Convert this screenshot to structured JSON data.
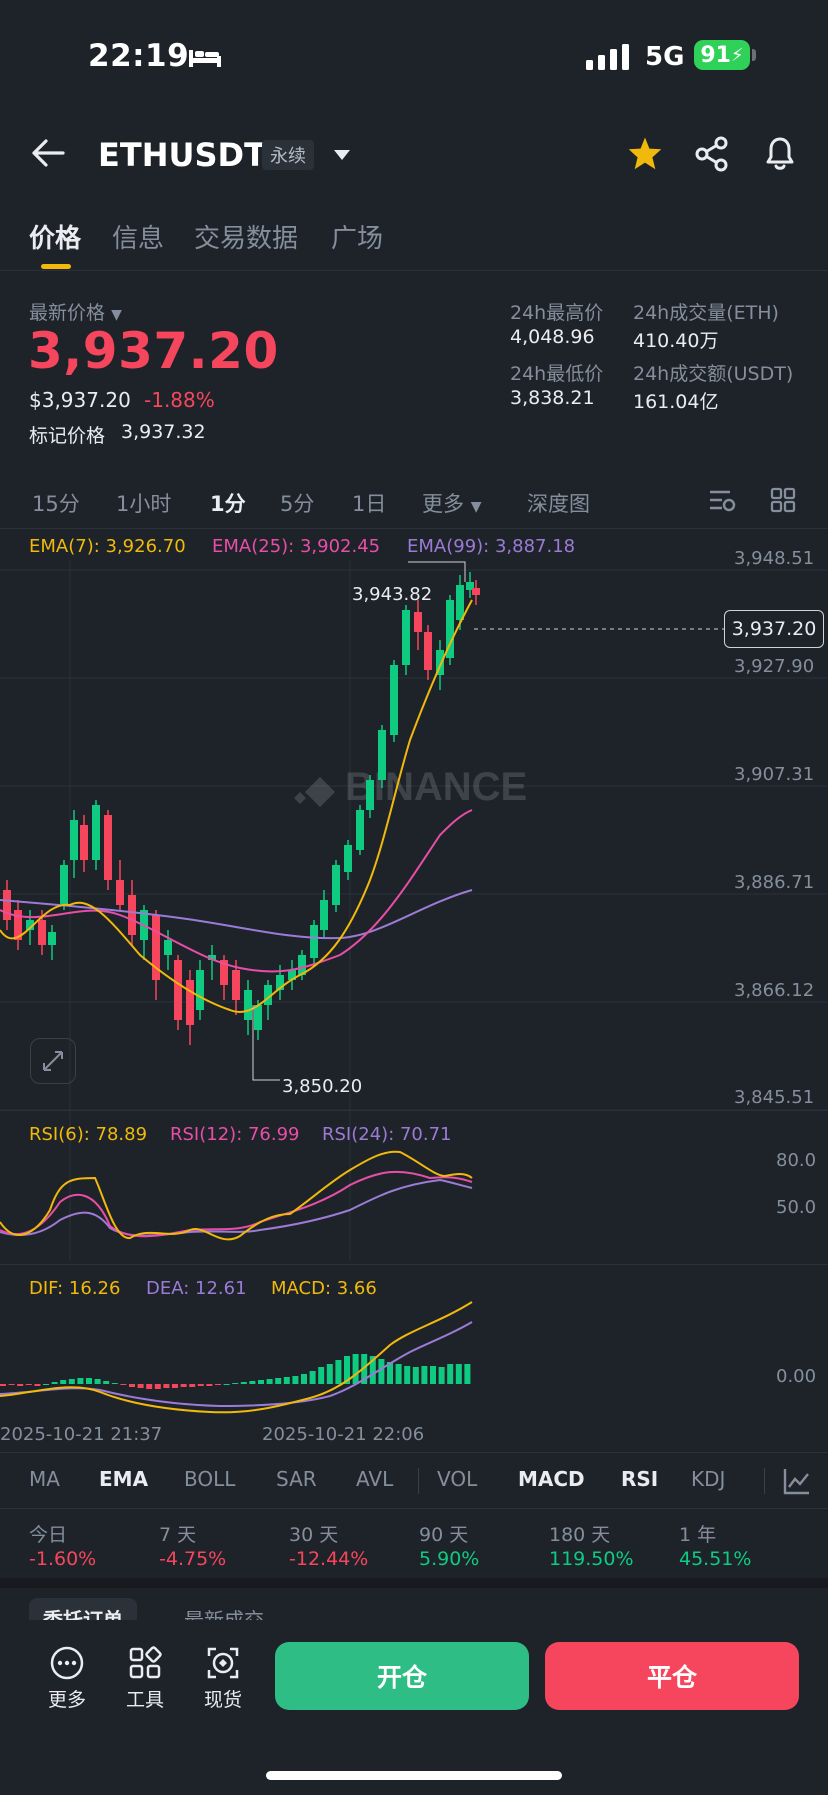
{
  "status": {
    "time": "22:19",
    "network": "5G",
    "battery": "91"
  },
  "header": {
    "symbol": "ETHUSDT",
    "tag": "永续"
  },
  "tabs": [
    "价格",
    "信息",
    "交易数据",
    "广场"
  ],
  "price": {
    "latest_label": "最新价格",
    "latest_value": "3,937.20",
    "usd_value": "$3,937.20",
    "change_pct": "-1.88%",
    "mark_label": "标记价格",
    "mark_value": "3,937.32"
  },
  "stats": {
    "high_label": "24h最高价",
    "high_value": "4,048.96",
    "vol_eth_label": "24h成交量(ETH)",
    "vol_eth_value": "410.40万",
    "low_label": "24h最低价",
    "low_value": "3,838.21",
    "vol_usdt_label": "24h成交额(USDT)",
    "vol_usdt_value": "161.04亿"
  },
  "timeframes": [
    "15分",
    "1小时",
    "1分",
    "5分",
    "1日",
    "更多",
    "深度图"
  ],
  "active_timeframe": "1分",
  "chart": {
    "ema7": "EMA(7): 3,926.70",
    "ema25": "EMA(25): 3,902.45",
    "ema99": "EMA(99): 3,887.18",
    "y_labels": [
      "3,948.51",
      "3,927.90",
      "3,907.31",
      "3,886.71",
      "3,866.12",
      "3,845.51"
    ],
    "current_price_tag": "3,937.20",
    "high_marker": "3,943.82",
    "low_marker": "3,850.20",
    "watermark": "BINANCE",
    "rsi6": "RSI(6): 78.89",
    "rsi12": "RSI(12): 76.99",
    "rsi24": "RSI(24): 70.71",
    "rsi_levels": [
      "80.0",
      "50.0"
    ],
    "dif": "DIF: 16.26",
    "dea": "DEA: 12.61",
    "macd": "MACD: 3.66",
    "macd_zero": "0.00",
    "x_labels": [
      "2025-10-21 21:37",
      "2025-10-21 22:06"
    ]
  },
  "indicator_tabs": [
    "MA",
    "EMA",
    "BOLL",
    "SAR",
    "AVL",
    "VOL",
    "MACD",
    "RSI",
    "KDJ"
  ],
  "performance": [
    {
      "label": "今日",
      "value": "-1.60%"
    },
    {
      "label": "7 天",
      "value": "-4.75%"
    },
    {
      "label": "30 天",
      "value": "-12.44%"
    },
    {
      "label": "90 天",
      "value": "5.90%"
    },
    {
      "label": "180 天",
      "value": "119.50%"
    },
    {
      "label": "1 年",
      "value": "45.51%"
    }
  ],
  "order_tabs": [
    "委托订单",
    "最新成交"
  ],
  "bottom": {
    "more": "更多",
    "tools": "工具",
    "spot": "现货",
    "open": "开仓",
    "close": "平仓"
  },
  "colors": {
    "up": "#0ecb81",
    "down": "#f6465d",
    "ema7": "#f0b90b",
    "ema25": "#e84ea8",
    "ema99": "#9b7bd6"
  }
}
